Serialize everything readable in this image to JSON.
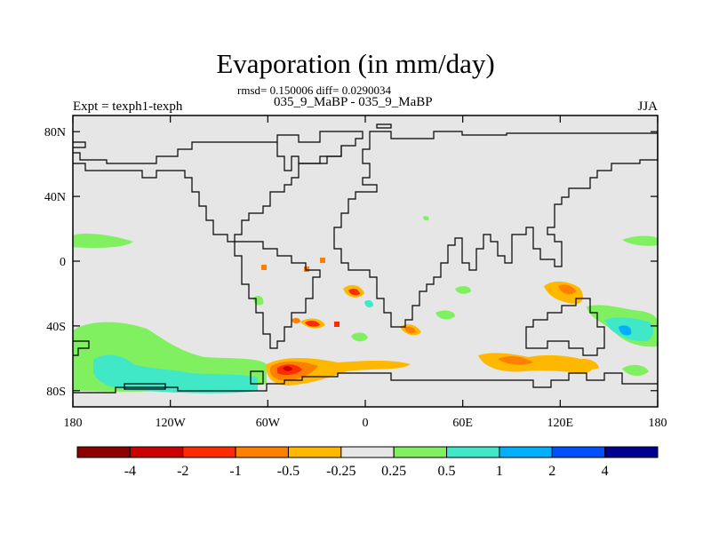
{
  "title": "Evaporation (in mm/day)",
  "stats": "rmsd= 0.150006 diff= 0.0290034",
  "left_label": "Expt = texph1-texph",
  "center_label": "035_9_MaBP - 035_9_MaBP",
  "right_label": "JJA",
  "map": {
    "projection": "cylindrical equidistant",
    "lon_ticks": [
      "180",
      "120W",
      "60W",
      "0",
      "60E",
      "120E",
      "180"
    ],
    "lat_ticks": [
      "80N",
      "40N",
      "0",
      "40S",
      "80S"
    ],
    "ocean_color": "#e6e6e6",
    "coastline_color": "#000000"
  },
  "colorbar": {
    "labels": [
      "-4",
      "-2",
      "-1",
      "-0.5",
      "-0.25",
      "0.25",
      "0.5",
      "1",
      "2",
      "4"
    ],
    "colors": [
      "#8b0000",
      "#cc0000",
      "#ff2a00",
      "#ff7f00",
      "#ffb800",
      "#e6e6e6",
      "#80f060",
      "#40e8c8",
      "#00b0ff",
      "#0050ff",
      "#000090"
    ]
  }
}
